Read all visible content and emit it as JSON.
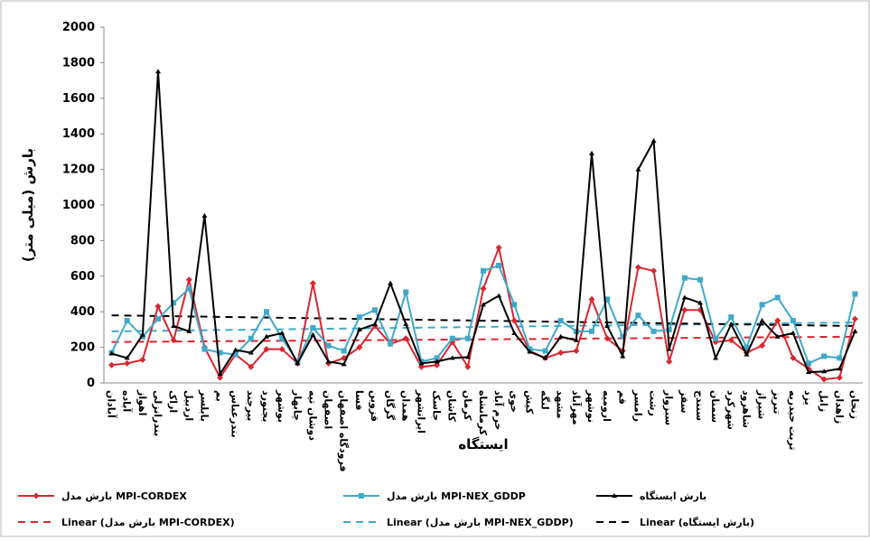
{
  "chart_data": {
    "type": "line",
    "y_label": "بارش (میلی متر)",
    "x_label": "ایستگاه",
    "categories": [
      "آبادان",
      "آباده",
      "اهواز",
      "بندرانزلی",
      "اراک",
      "اردبیل",
      "بابلسر",
      "بم",
      "بندرعباس",
      "بیرجند",
      "بجنورد",
      "بوشهر",
      "چابهار",
      "دوشان تپه",
      "اصفهان",
      "فرودگاه اصفهان",
      "فسا",
      "قزوین",
      "گرگان",
      "همدان",
      "ایرانشهر",
      "جاسک",
      "کاشان",
      "کرمان",
      "کرمانشاه",
      "خرم آباد",
      "خوی",
      "کیش",
      "لنگه",
      "مشهد",
      "مهرآباد",
      "نوشهر",
      "ارومیه",
      "قم",
      "رامسر",
      "رشت",
      "سبزوار",
      "سقز",
      "سنندج",
      "سمنان",
      "شهرکرد",
      "شاهرود",
      "شیراز",
      "تبریز",
      "تربت حیدریه",
      "یزد",
      "زابل",
      "زاهدان",
      "زنجان"
    ],
    "series": [
      {
        "name": "بارش مدل MPI-CORDEX",
        "color": "#d9262f",
        "marker": "diamond",
        "values": [
          100,
          110,
          130,
          430,
          240,
          580,
          200,
          30,
          160,
          90,
          190,
          190,
          110,
          560,
          110,
          140,
          200,
          320,
          220,
          250,
          90,
          100,
          230,
          90,
          530,
          760,
          350,
          180,
          140,
          170,
          180,
          470,
          250,
          180,
          650,
          630,
          120,
          410,
          410,
          230,
          240,
          170,
          210,
          350,
          140,
          80,
          20,
          30,
          360
        ]
      },
      {
        "name": "بارش مدل MPI-NEX_GDDP",
        "color": "#3fa9c9",
        "marker": "square",
        "values": [
          170,
          350,
          260,
          360,
          450,
          530,
          190,
          170,
          160,
          250,
          400,
          250,
          120,
          310,
          210,
          180,
          370,
          410,
          220,
          510,
          120,
          140,
          250,
          250,
          630,
          660,
          440,
          190,
          180,
          350,
          290,
          290,
          470,
          260,
          380,
          290,
          300,
          590,
          580,
          250,
          370,
          200,
          440,
          480,
          350,
          110,
          150,
          140,
          500
        ]
      },
      {
        "name": "بارش ایستگاه",
        "color": "#000000",
        "marker": "triangle",
        "values": [
          165,
          140,
          270,
          1750,
          320,
          290,
          940,
          50,
          185,
          170,
          260,
          280,
          110,
          270,
          120,
          105,
          300,
          330,
          560,
          330,
          110,
          120,
          140,
          145,
          440,
          490,
          280,
          175,
          140,
          260,
          240,
          1290,
          320,
          150,
          1200,
          1360,
          190,
          480,
          450,
          140,
          330,
          160,
          350,
          260,
          280,
          60,
          65,
          80,
          290
        ]
      }
    ],
    "trendlines": [
      {
        "name": "Linear (بارش مدل MPI-CORDEX)",
        "color": "#d9262f",
        "values": [
          230,
          260
        ]
      },
      {
        "name": "Linear (بارش مدل MPI-NEX_GDDP)",
        "color": "#3fa9c9",
        "values": [
          290,
          340
        ]
      },
      {
        "name": "Linear (بارش ایستگاه)",
        "color": "#000000",
        "values": [
          380,
          320
        ]
      }
    ],
    "ylim": [
      0,
      2000
    ],
    "yticks": [
      0,
      200,
      400,
      600,
      800,
      1000,
      1200,
      1400,
      1600,
      1800,
      2000
    ],
    "grid": false
  }
}
